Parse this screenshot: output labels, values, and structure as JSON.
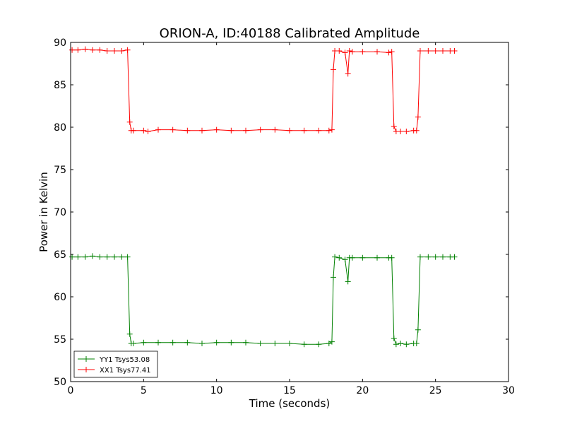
{
  "chart_data": {
    "type": "line",
    "title": "ORION-A, ID:40188 Calibrated Amplitude",
    "xlabel": "Time (seconds)",
    "ylabel": "Power in Kelvin",
    "xlim": [
      0,
      30
    ],
    "ylim": [
      50,
      90
    ],
    "xticks": [
      0,
      5,
      10,
      15,
      20,
      25,
      30
    ],
    "yticks": [
      50,
      55,
      60,
      65,
      70,
      75,
      80,
      85,
      90
    ],
    "grid": false,
    "legend_position": "lower-left",
    "marker": "plus",
    "series": [
      {
        "name": "YY1 Tsys53.08",
        "color": "#008000",
        "x": [
          0.1,
          0.5,
          1.0,
          1.5,
          2.0,
          2.5,
          3.0,
          3.5,
          3.9,
          4.05,
          4.15,
          4.3,
          5.0,
          6.0,
          7.0,
          8.0,
          9.0,
          10.0,
          11.0,
          12.0,
          13.0,
          14.0,
          15.0,
          16.0,
          17.0,
          17.7,
          17.9,
          18.0,
          18.1,
          18.4,
          18.8,
          19.0,
          19.1,
          19.3,
          20.0,
          21.0,
          21.8,
          22.0,
          22.15,
          22.3,
          22.6,
          23.0,
          23.5,
          23.7,
          23.8,
          23.95,
          24.5,
          25.0,
          25.5,
          26.0,
          26.3
        ],
        "values": [
          64.7,
          64.7,
          64.7,
          64.8,
          64.7,
          64.7,
          64.7,
          64.7,
          64.7,
          55.6,
          54.5,
          54.5,
          54.6,
          54.6,
          54.6,
          54.6,
          54.5,
          54.6,
          54.6,
          54.6,
          54.5,
          54.5,
          54.5,
          54.4,
          54.4,
          54.5,
          54.7,
          62.3,
          64.7,
          64.6,
          64.4,
          61.8,
          64.6,
          64.6,
          64.6,
          64.6,
          64.6,
          64.6,
          55.1,
          54.4,
          54.5,
          54.4,
          54.5,
          54.5,
          56.1,
          64.7,
          64.7,
          64.7,
          64.7,
          64.7,
          64.7
        ]
      },
      {
        "name": "XX1 Tsys77.41",
        "color": "#ff0000",
        "x": [
          0.1,
          0.5,
          1.0,
          1.5,
          2.0,
          2.5,
          3.0,
          3.5,
          3.9,
          4.05,
          4.15,
          4.3,
          5.0,
          5.3,
          6.0,
          7.0,
          8.0,
          9.0,
          10.0,
          11.0,
          12.0,
          13.0,
          14.0,
          15.0,
          16.0,
          17.0,
          17.7,
          17.9,
          18.0,
          18.1,
          18.4,
          18.8,
          19.0,
          19.1,
          19.3,
          20.0,
          21.0,
          21.8,
          22.0,
          22.15,
          22.3,
          22.6,
          23.0,
          23.5,
          23.7,
          23.8,
          23.95,
          24.5,
          25.0,
          25.5,
          26.0,
          26.3
        ],
        "values": [
          89.1,
          89.1,
          89.2,
          89.1,
          89.1,
          89.0,
          89.0,
          89.0,
          89.1,
          80.6,
          79.6,
          79.6,
          79.6,
          79.5,
          79.7,
          79.7,
          79.6,
          79.6,
          79.7,
          79.6,
          79.6,
          79.7,
          79.7,
          79.6,
          79.6,
          79.6,
          79.6,
          79.7,
          86.8,
          89.0,
          89.0,
          88.8,
          86.3,
          89.0,
          88.9,
          88.9,
          88.9,
          88.8,
          88.9,
          80.1,
          79.5,
          79.5,
          79.5,
          79.6,
          79.6,
          81.2,
          89.0,
          89.0,
          89.0,
          89.0,
          89.0,
          89.0
        ]
      }
    ]
  }
}
